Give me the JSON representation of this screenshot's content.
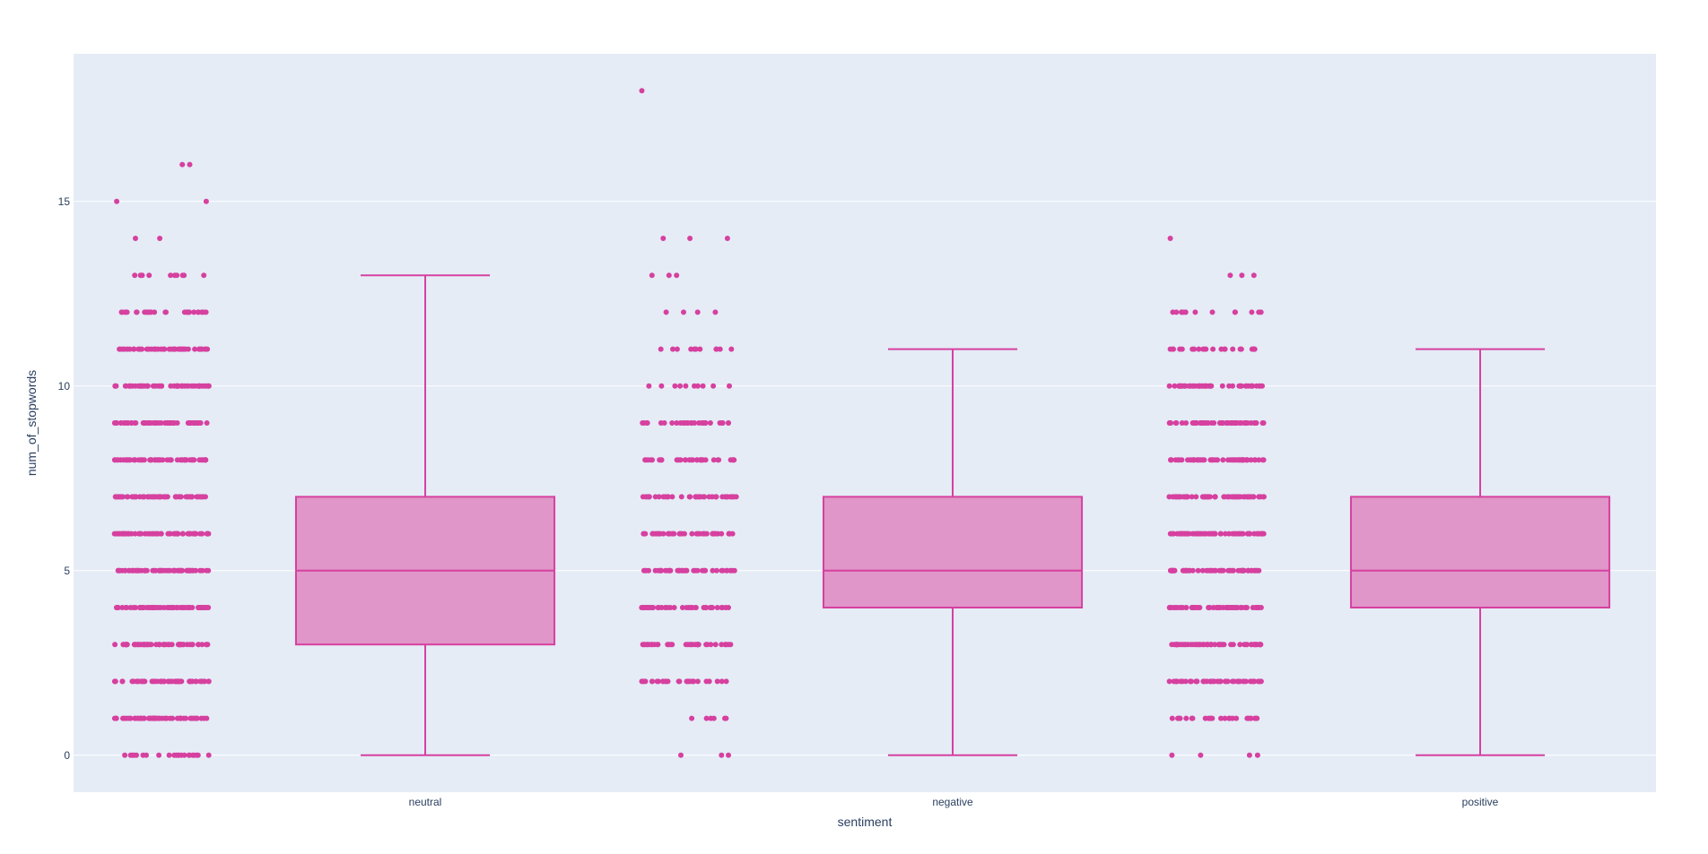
{
  "chart_data": {
    "type": "box",
    "xlabel": "sentiment",
    "ylabel": "num_of_stopwords",
    "categories": [
      "neutral",
      "negative",
      "positive"
    ],
    "ylim": [
      -1,
      19
    ],
    "yticks": [
      0,
      5,
      10,
      15
    ],
    "grid": true,
    "legend": "none",
    "points": "all",
    "colors": {
      "plot_bg": "#e5ecf6",
      "grid": "#ffffff",
      "box_line": "#d6409f",
      "box_fill": "#e096c8",
      "point": "#d6409f"
    },
    "series": [
      {
        "category": "neutral",
        "min": 0,
        "q1": 3,
        "median": 5,
        "q3": 7,
        "max": 13,
        "outliers": [
          14,
          15,
          16
        ],
        "point_counts": {
          "0": 22,
          "1": 55,
          "2": 55,
          "3": 60,
          "4": 60,
          "5": 60,
          "6": 60,
          "7": 60,
          "8": 58,
          "9": 58,
          "10": 55,
          "11": 45,
          "12": 25,
          "13": 10,
          "14": 2,
          "15": 2,
          "16": 2
        }
      },
      {
        "category": "negative",
        "min": 0,
        "q1": 4,
        "median": 5,
        "q3": 7,
        "max": 11,
        "outliers": [
          12,
          13,
          14,
          18
        ],
        "point_counts": {
          "0": 3,
          "1": 6,
          "2": 28,
          "3": 38,
          "4": 38,
          "5": 40,
          "6": 40,
          "7": 40,
          "8": 35,
          "9": 30,
          "10": 10,
          "11": 12,
          "12": 4,
          "13": 3,
          "14": 3,
          "18": 1
        }
      },
      {
        "category": "positive",
        "min": 0,
        "q1": 4,
        "median": 5,
        "q3": 7,
        "max": 11,
        "outliers": [
          12,
          13,
          14
        ],
        "point_counts": {
          "0": 4,
          "1": 25,
          "2": 50,
          "3": 55,
          "4": 58,
          "5": 58,
          "6": 58,
          "7": 58,
          "8": 55,
          "9": 55,
          "10": 50,
          "11": 22,
          "12": 14,
          "13": 3,
          "14": 1
        }
      }
    ]
  }
}
